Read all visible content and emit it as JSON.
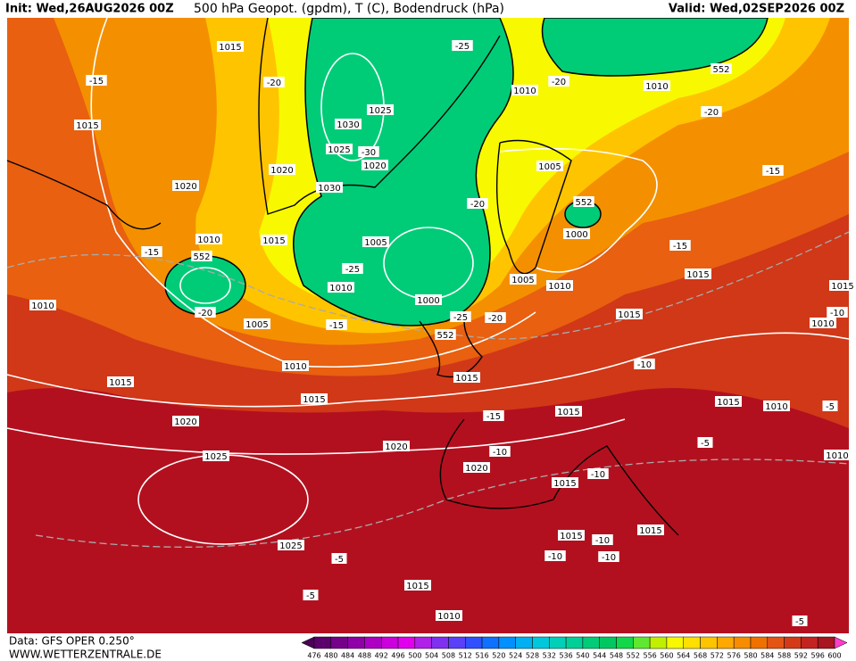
{
  "header": {
    "init": "Init: Wed,26AUG2026 00Z",
    "title": "500 hPa Geopot. (gpdm), T (C), Bodendruck (hPa)",
    "valid": "Valid: Wed,02SEP2026 00Z"
  },
  "footer": {
    "data_source": "Data: GFS OPER 0.250°",
    "website": "WWW.WETTERZENTRALE.DE"
  },
  "legend": {
    "levels": [
      476,
      480,
      484,
      488,
      492,
      496,
      500,
      504,
      508,
      512,
      516,
      520,
      524,
      528,
      532,
      536,
      540,
      544,
      548,
      552,
      556,
      560,
      564,
      568,
      572,
      576,
      580,
      584,
      588,
      592,
      596,
      600
    ],
    "colors": [
      "#4a0055",
      "#5c006c",
      "#75008a",
      "#9000a8",
      "#ad00c4",
      "#cc00dc",
      "#e000ee",
      "#b020e8",
      "#8030f0",
      "#5a40f8",
      "#3050ff",
      "#1070ff",
      "#0090ff",
      "#00b0f0",
      "#00c8dc",
      "#00d0b8",
      "#00d098",
      "#00cc78",
      "#00c860",
      "#10d848",
      "#60e830",
      "#c0f000",
      "#f8f800",
      "#ffe000",
      "#ffc400",
      "#ffa800",
      "#f88c00",
      "#f07000",
      "#e45414",
      "#d43a18",
      "#c42420",
      "#a81420",
      "#ff3ccc"
    ]
  },
  "map": {
    "contour_labels": [
      1015,
      -15,
      1015,
      -20,
      1020,
      1015,
      1010,
      -15,
      552,
      -20,
      1010,
      1005,
      1010,
      -25,
      1005,
      -15,
      1010,
      1015,
      1015,
      1020,
      1025,
      1020,
      1020,
      -10,
      -15,
      1015,
      552,
      -25,
      -20,
      1000,
      -20,
      1030,
      1025,
      1025,
      -30,
      1020,
      1030,
      1020,
      -25,
      1010,
      -20,
      1010,
      552,
      -20,
      1005,
      552,
      1000,
      1005,
      1010,
      -15,
      1015,
      -15,
      1015,
      -10,
      1015,
      1015,
      1010,
      -5,
      -10,
      1015,
      1015,
      -10,
      1015,
      -10,
      -10,
      1025,
      -5,
      -5,
      1015,
      1010,
      1010,
      -5,
      1010,
      1015,
      -10,
      -5
    ]
  }
}
